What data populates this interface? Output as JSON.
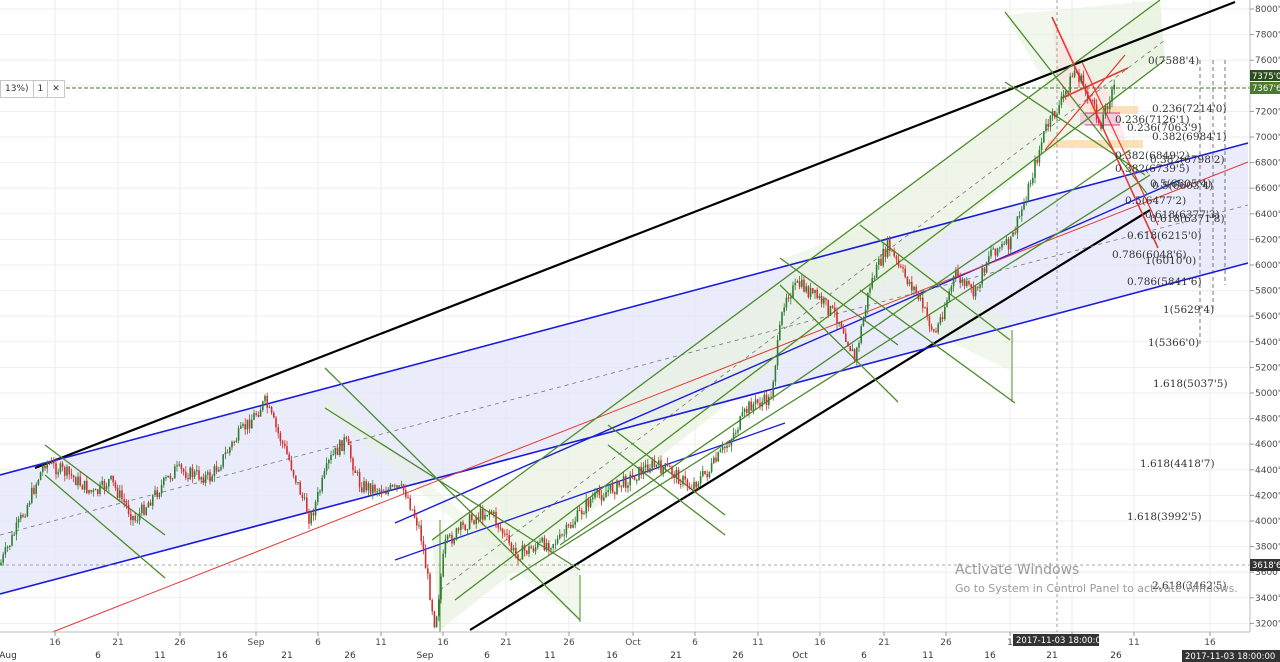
{
  "toolbox": {
    "pct": "13%)",
    "count": "1",
    "close": "✕"
  },
  "chart_data": {
    "type": "candlestick",
    "price_axis": {
      "ticks": [
        "8000'0",
        "7800'0",
        "7600'0",
        "7400'0",
        "7200'0",
        "7000'0",
        "6800'0",
        "6600'0",
        "6400'0",
        "6200'0",
        "6000'0",
        "5800'0",
        "5600'0",
        "5400'0",
        "5200'0",
        "5000'0",
        "4800'0",
        "4600'0",
        "4400'0",
        "4200'0",
        "4000'0",
        "3800'0",
        "3600'0",
        "3400'0",
        "3200'0"
      ],
      "range": [
        3130,
        8050
      ],
      "current_price_labels": [
        "7375'0",
        "7367'6"
      ],
      "crosshair_price_label": "3618'6"
    },
    "time_axis": {
      "ticks": [
        "16",
        "21",
        "26",
        "Sep",
        "6",
        "11",
        "16",
        "21",
        "26",
        "Sep",
        "6",
        "11",
        "16",
        "21",
        "26",
        "Oct",
        "6",
        "11",
        "16",
        "21",
        "26",
        "Oct",
        "6",
        "11",
        "16",
        "21",
        "26",
        "1",
        "6",
        "11",
        "16"
      ],
      "month_labels": [
        "Aug",
        "Sep",
        "Oct"
      ],
      "crosshair_time_label": "2017-11-03 18:00:00",
      "corner_time_label": "2017-11-03 18:00:00"
    },
    "fib_labels": [
      "0(7588'4)",
      "0.236(7214'0)",
      "0.236(7126'1)",
      "0.236(7063'9)",
      "0.382(6984'1)",
      "0.382(6849'2)",
      "0.382(6798'2)",
      "0.382(6739'5)",
      "0.5(6605'4)",
      "0.5(6603'4)",
      "0.5(6477'2)",
      "0.618(6371'8)",
      "0.618(6377'3)",
      "0.618(6215'0)",
      "0.786(6048'6)",
      "1(6010'0)",
      "0.786(5841'6)",
      "1(5629'4)",
      "1(5366'0)",
      "1.618(5037'5)",
      "1.618(4418'7)",
      "1.618(3992'5)",
      "2.618(3462'5)"
    ],
    "watermark": {
      "title": "Activate Windows",
      "subtitle": "Go to System in Control Panel to activate Windows."
    },
    "colors": {
      "candle_up": "#2e7d32",
      "candle_down": "#d32f2f",
      "channel": "#1a1adf",
      "pitchfork": "#4c8c2b",
      "trend": "#000000",
      "fib_red": "#e53935",
      "current_price": "#4a7a2c"
    }
  }
}
